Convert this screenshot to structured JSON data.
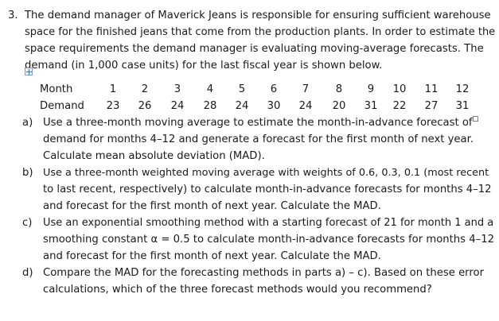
{
  "question": {
    "number": "3.",
    "intro_lines": [
      "The demand manager of Maverick Jeans is responsible for ensuring sufficient warehouse",
      "space for the finished jeans that come from the production plants. In order to estimate the",
      "space requirements the demand manager is evaluating moving-average forecasts. The",
      "demand (in 1,000 case units) for the last fiscal year is shown below."
    ]
  },
  "table": {
    "month_label": "Month",
    "demand_label": "Demand",
    "months": [
      "1",
      "2",
      "3",
      "4",
      "5",
      "6",
      "7",
      "8",
      "9",
      "10",
      "11",
      "12"
    ],
    "demand": [
      "23",
      "26",
      "24",
      "28",
      "24",
      "30",
      "24",
      "20",
      "31",
      "22",
      "27",
      "31"
    ]
  },
  "parts": [
    {
      "label": "a)",
      "lines": [
        "Use a three-month moving average to estimate the month-in-advance forecast of",
        "demand for months 4–12 and generate a forecast for the first month of next year.",
        "Calculate mean absolute deviation (MAD)."
      ]
    },
    {
      "label": "b)",
      "lines": [
        "Use a three-month weighted moving average with weights of 0.6, 0.3, 0.1 (most recent",
        "to last recent, respectively) to calculate month-in-advance forecasts for months 4–12",
        "and forecast for the first month of next year. Calculate the MAD."
      ]
    },
    {
      "label": "c)",
      "lines": [
        "Use an exponential smoothing method with a starting forecast of 21 for month 1 and a",
        "smoothing constant α = 0.5 to calculate month-in-advance forecasts for months 4–12",
        "and forecast for the first month of next year. Calculate the MAD."
      ]
    },
    {
      "label": "d)",
      "lines": [
        "Compare the MAD for the forecasting methods in parts a) – c). Based on these error",
        "calculations, which of the three forecast methods would you recommend?"
      ]
    }
  ]
}
